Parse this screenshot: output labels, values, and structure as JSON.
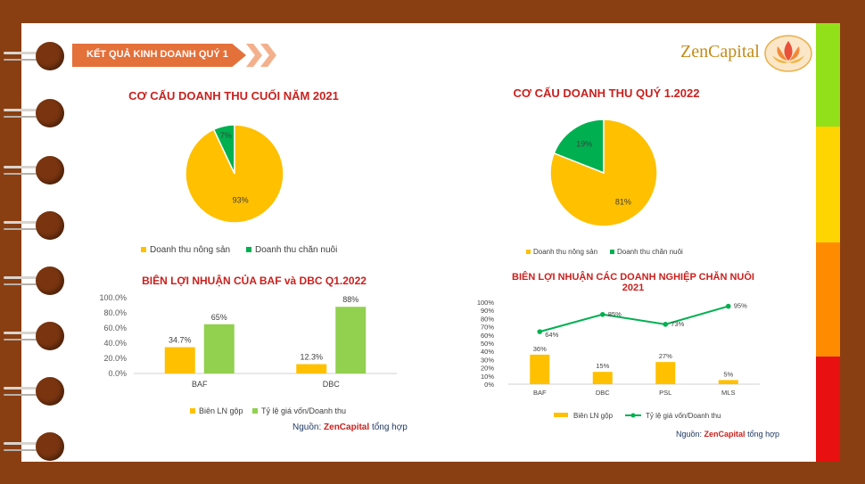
{
  "header": {
    "banner": "KẾT QUẢ KINH DOANH QUÝ 1",
    "logo_text": "ZenCapital"
  },
  "colors": {
    "frame": "#8a3f12",
    "banner": "#e4703a",
    "gold": "#ffc000",
    "green_pie": "#00b050",
    "green_bar": "#92d050",
    "title_red": "#c9211e"
  },
  "source": {
    "prefix": "Nguồn:",
    "brand": "ZenCapital",
    "suffix": "tổng hợp"
  },
  "chart_data": [
    {
      "type": "pie",
      "title": "CƠ CẤU DOANH THU CUỐI NĂM 2021",
      "labels": [
        "Doanh thu nông sản",
        "Doanh thu chăn nuôi"
      ],
      "values": [
        93,
        7
      ],
      "data_labels": [
        "93%",
        "7%"
      ],
      "colors": [
        "#ffc000",
        "#00b050"
      ],
      "legend": "bottom"
    },
    {
      "type": "pie",
      "title": "CƠ CẤU DOANH THU QUÝ 1.2022",
      "labels": [
        "Doanh thu nông sản",
        "Doanh thu chăn nuôi"
      ],
      "values": [
        81,
        19
      ],
      "data_labels": [
        "81%",
        "19%"
      ],
      "colors": [
        "#ffc000",
        "#00b050"
      ],
      "legend": "bottom"
    },
    {
      "type": "bar",
      "title": "BIÊN LỢI NHUẬN CỦA BAF và DBC Q1.2022",
      "categories": [
        "BAF",
        "DBC"
      ],
      "series": [
        {
          "name": "Biên LN gộp",
          "values": [
            34.7,
            12.3
          ],
          "data_labels": [
            "34.7%",
            "12.3%"
          ],
          "color": "#ffc000"
        },
        {
          "name": "Tỷ lệ giá vốn/Doanh thu",
          "values": [
            65,
            88
          ],
          "data_labels": [
            "65%",
            "88%"
          ],
          "color": "#92d050"
        }
      ],
      "ylim": [
        0,
        100
      ],
      "yticks": [
        "0.0%",
        "20.0%",
        "40.0%",
        "60.0%",
        "80.0%",
        "100.0%"
      ],
      "legend": "bottom"
    },
    {
      "type": "bar",
      "title": "BIÊN LỢI NHUẬN CÁC DOANH NGHIỆP CHĂN NUÔI 2021",
      "categories": [
        "BAF",
        "DBC",
        "PSL",
        "MLS"
      ],
      "series": [
        {
          "name": "Biên LN gộp",
          "kind": "bar",
          "values": [
            36,
            15,
            27,
            5
          ],
          "data_labels": [
            "36%",
            "15%",
            "27%",
            "5%"
          ],
          "color": "#ffc000"
        },
        {
          "name": "Tỷ lệ giá vốn/Doanh thu",
          "kind": "line",
          "values": [
            64,
            85,
            73,
            95
          ],
          "data_labels": [
            "64%",
            "85%",
            "73%",
            "95%"
          ],
          "color": "#00b050"
        }
      ],
      "ylim": [
        0,
        100
      ],
      "yticks": [
        "0%",
        "10%",
        "20%",
        "30%",
        "40%",
        "50%",
        "60%",
        "70%",
        "80%",
        "90%",
        "100%"
      ],
      "legend": "bottom"
    }
  ]
}
